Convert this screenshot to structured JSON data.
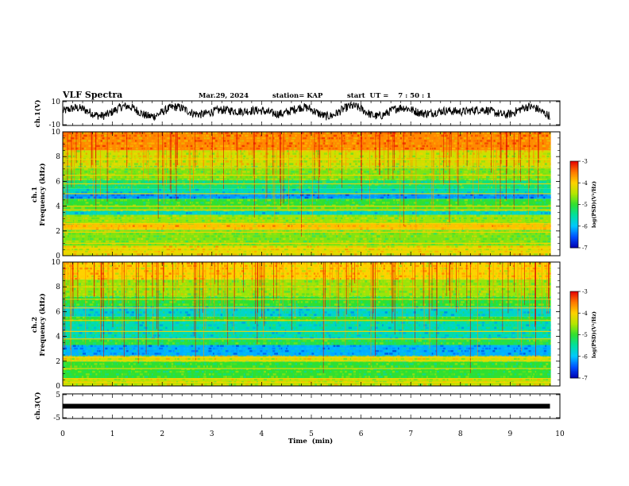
{
  "header": {
    "title": "VLF Spectra",
    "date": "Mar.29, 2024",
    "station": "station= KAP",
    "start_time": "start  UT =    7 : 50 : 1"
  },
  "panels": {
    "ch1_voltage": {
      "ylabel": "ch.1(V)",
      "yticks": [
        "10",
        "-10"
      ]
    },
    "ch1_spectrogram": {
      "ylabel_top": "ch.1",
      "ylabel": "Frequency (kHz)",
      "yticks": [
        "0",
        "2",
        "4",
        "6",
        "8",
        "10"
      ]
    },
    "ch2_spectrogram": {
      "ylabel_top": "ch.2",
      "ylabel": "Frequency (kHz)",
      "yticks": [
        "0",
        "2",
        "4",
        "6",
        "8",
        "10"
      ]
    },
    "ch3_voltage": {
      "ylabel": "ch.3(V)",
      "yticks": [
        "5",
        "-5"
      ]
    }
  },
  "x_axis": {
    "label": "Time  (min)",
    "ticks": [
      "0",
      "1",
      "2",
      "3",
      "4",
      "5",
      "6",
      "7",
      "8",
      "9",
      "10"
    ]
  },
  "colorbars": [
    {
      "ticks": [
        "-3",
        "-4",
        "-5",
        "-6",
        "-7"
      ],
      "label": "log(PSD)(V²/Hz)"
    },
    {
      "ticks": [
        "-3",
        "-4",
        "-5",
        "-6",
        "-7"
      ],
      "label": "log(PSD)(V²/Hz)"
    }
  ],
  "colors": {
    "colormap": [
      "#0000b4",
      "#0050ff",
      "#00c8ff",
      "#00e0a0",
      "#30e030",
      "#b4e600",
      "#ffd200",
      "#ff7800",
      "#e60000"
    ],
    "line": "#000000"
  },
  "chart_data": [
    {
      "type": "line",
      "title": "ch.1(V)",
      "x_unit": "min",
      "xlim": [
        0,
        10
      ],
      "ylim": [
        -10,
        10
      ],
      "data_end_min": 9.8,
      "series": [
        {
          "note_level": "noise oscillating roughly between -6 and +8 V"
        }
      ]
    },
    {
      "type": "heatmap",
      "title": "ch.1 spectrogram",
      "xlim": [
        0,
        10
      ],
      "ylim": [
        0,
        10
      ],
      "clim": [
        -7,
        -3
      ],
      "bands": [
        {
          "f_low": 0.0,
          "f_high": 0.8,
          "level": -4.2
        },
        {
          "f_low": 0.8,
          "f_high": 2.1,
          "level": -4.7
        },
        {
          "f_low": 2.1,
          "f_high": 2.6,
          "level": -3.9
        },
        {
          "f_low": 2.6,
          "f_high": 3.3,
          "level": -4.6
        },
        {
          "f_low": 3.3,
          "f_high": 3.6,
          "level": -5.7
        },
        {
          "f_low": 3.6,
          "f_high": 4.0,
          "level": -4.9
        },
        {
          "f_low": 4.0,
          "f_high": 4.6,
          "level": -5.0
        },
        {
          "f_low": 4.6,
          "f_high": 5.0,
          "level": -6.2
        },
        {
          "f_low": 5.0,
          "f_high": 5.4,
          "level": -5.6
        },
        {
          "f_low": 5.4,
          "f_high": 6.1,
          "level": -5.3
        },
        {
          "f_low": 6.1,
          "f_high": 7.2,
          "level": -4.7
        },
        {
          "f_low": 7.2,
          "f_high": 8.5,
          "level": -4.3
        },
        {
          "f_low": 8.5,
          "f_high": 10.0,
          "level": -3.6
        }
      ],
      "lines_khz": [
        0.3,
        0.6,
        1.0,
        1.9,
        2.2,
        2.6,
        3.7,
        4.0,
        5.0,
        5.8,
        6.5,
        7.1,
        7.8
      ]
    },
    {
      "type": "heatmap",
      "title": "ch.2 spectrogram",
      "xlim": [
        0,
        10
      ],
      "ylim": [
        0,
        10
      ],
      "clim": [
        -7,
        -3
      ],
      "bands": [
        {
          "f_low": 0.0,
          "f_high": 0.6,
          "level": -4.4
        },
        {
          "f_low": 0.6,
          "f_high": 2.0,
          "level": -5.0
        },
        {
          "f_low": 2.0,
          "f_high": 2.4,
          "level": -4.3
        },
        {
          "f_low": 2.4,
          "f_high": 3.3,
          "level": -6.1
        },
        {
          "f_low": 3.3,
          "f_high": 3.8,
          "level": -5.1
        },
        {
          "f_low": 3.8,
          "f_high": 5.2,
          "level": -5.6
        },
        {
          "f_low": 5.2,
          "f_high": 5.6,
          "level": -5.0
        },
        {
          "f_low": 5.6,
          "f_high": 6.4,
          "level": -5.7
        },
        {
          "f_low": 6.4,
          "f_high": 7.2,
          "level": -5.0
        },
        {
          "f_low": 7.2,
          "f_high": 8.6,
          "level": -4.6
        },
        {
          "f_low": 8.6,
          "f_high": 10.0,
          "level": -4.0
        }
      ],
      "lines_khz": [
        0.3,
        0.6,
        1.4,
        2.0,
        2.3,
        3.8,
        4.4,
        5.3,
        6.3,
        7.0,
        8.0
      ]
    },
    {
      "type": "line",
      "title": "ch.3(V)",
      "x_unit": "min",
      "xlim": [
        0,
        10
      ],
      "ylim": [
        -5,
        5
      ],
      "data_end_min": 9.8,
      "series": [
        {
          "constant_value": 0
        }
      ]
    }
  ]
}
